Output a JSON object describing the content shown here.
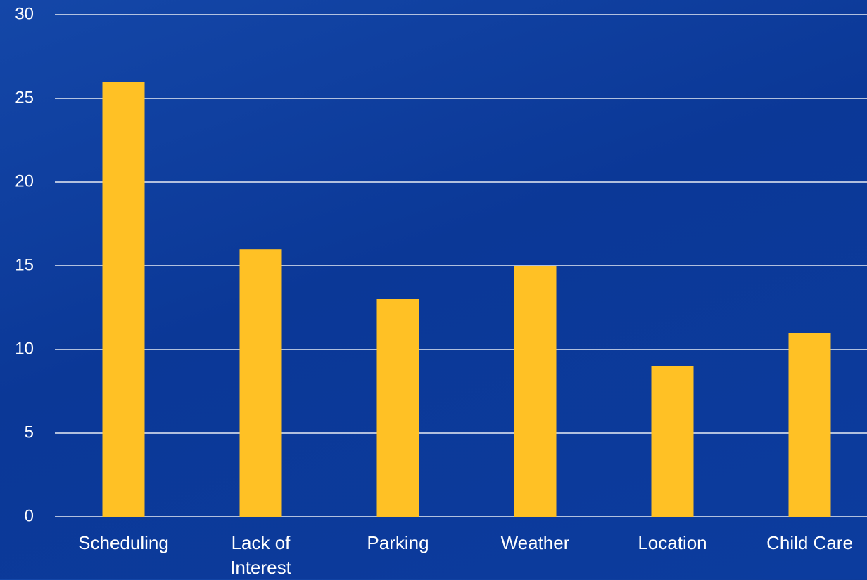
{
  "chart_data": {
    "type": "bar",
    "categories": [
      "Scheduling",
      "Lack of Interest",
      "Parking",
      "Weather",
      "Location",
      "Child Care"
    ],
    "values": [
      26,
      16,
      13,
      15,
      9,
      11
    ],
    "color": "#ffc125",
    "ylim": [
      0,
      30
    ],
    "yticks": [
      0,
      5,
      10,
      15,
      20,
      25,
      30
    ],
    "grid": true
  }
}
